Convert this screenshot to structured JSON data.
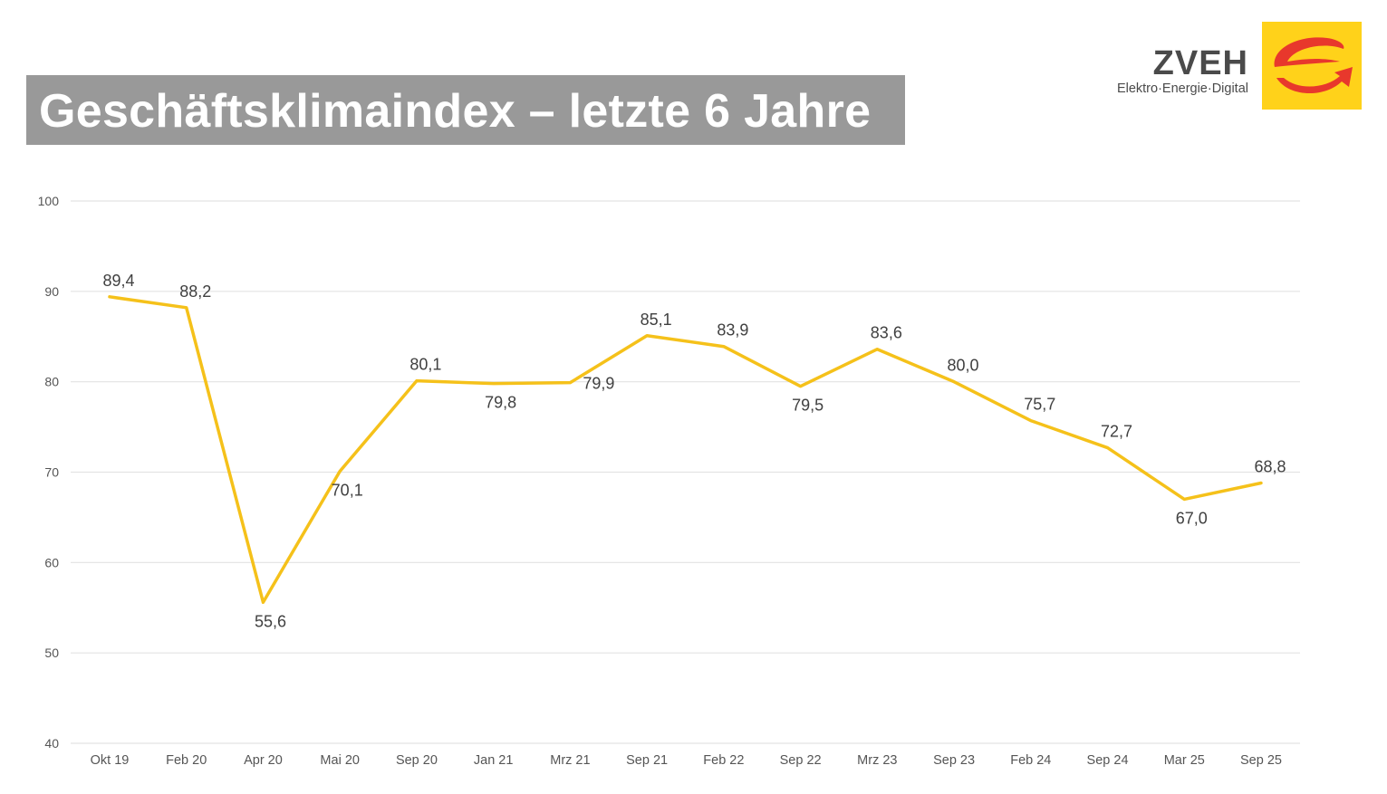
{
  "header": {
    "title": "Geschäftsklimaindex – letzte 6 Jahre"
  },
  "logo": {
    "name": "ZVEH",
    "tagline": "Elektro·Energie·Digital",
    "icon": "zveh-e-arrow-logo-icon",
    "colors": {
      "box": "#ffd21a",
      "mark": "#e8382c",
      "text": "#4a4a4a"
    }
  },
  "chart_data": {
    "type": "line",
    "title": "Geschäftsklimaindex – letzte 6 Jahre",
    "xlabel": "",
    "ylabel": "",
    "ylim": [
      40,
      100
    ],
    "yticks": [
      40,
      50,
      60,
      70,
      80,
      90,
      100
    ],
    "grid": true,
    "legend": "none",
    "categories": [
      "Okt 19",
      "Feb 20",
      "Apr 20",
      "Mai 20",
      "Sep 20",
      "Jan 21",
      "Mrz 21",
      "Sep 21",
      "Feb 22",
      "Sep 22",
      "Mrz 23",
      "Sep 23",
      "Feb 24",
      "Sep 24",
      "Mar 25",
      "Sep 25"
    ],
    "series": [
      {
        "name": "Geschäftsklimaindex",
        "color": "#f5c11a",
        "values": [
          89.4,
          88.2,
          55.6,
          70.1,
          80.1,
          79.8,
          79.9,
          85.1,
          83.9,
          79.5,
          83.6,
          80.0,
          75.7,
          72.7,
          67.0,
          68.8
        ],
        "labels": [
          "89,4",
          "88,2",
          "55,6",
          "70,1",
          "80,1",
          "79,8",
          "79,9",
          "85,1",
          "83,9",
          "79,5",
          "83,6",
          "80,0",
          "75,7",
          "72,7",
          "67,0",
          "68,8"
        ],
        "label_positions": [
          "above",
          "above",
          "below",
          "below",
          "above",
          "below",
          "right",
          "above",
          "above",
          "below",
          "above",
          "above",
          "above",
          "above",
          "below",
          "above"
        ]
      }
    ]
  }
}
